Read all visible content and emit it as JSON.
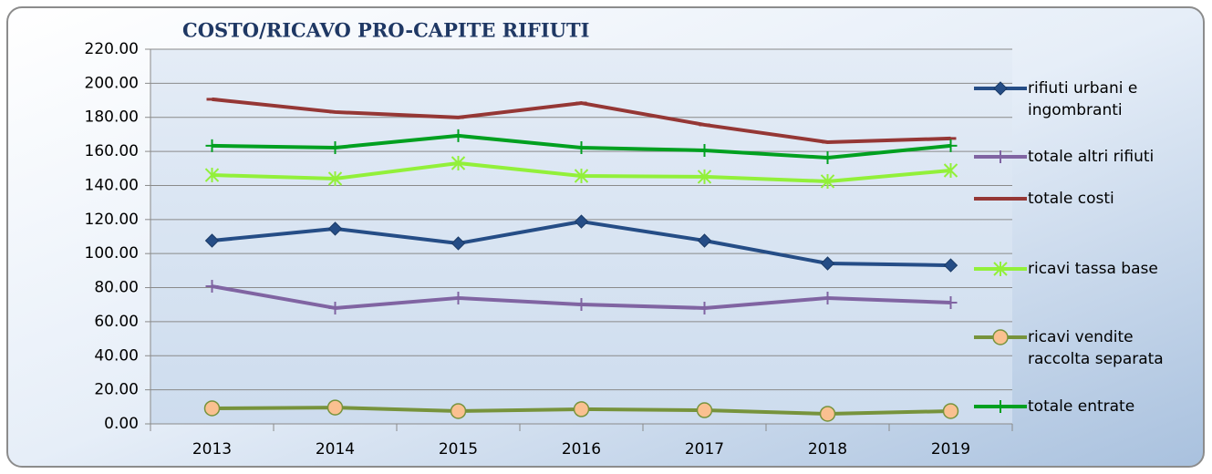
{
  "chart_data": {
    "type": "line",
    "title": "COSTO/RICAVO PRO-CAPITE RIFIUTI",
    "categories": [
      "2013",
      "2014",
      "2015",
      "2016",
      "2017",
      "2018",
      "2019"
    ],
    "series": [
      {
        "name": "rifiuti urbani e ingombranti",
        "color": "#254d86",
        "marker": "diamond",
        "values": [
          107.6,
          114.6,
          106.0,
          118.8,
          107.6,
          94.2,
          93.1
        ]
      },
      {
        "name": "totale altri rifiuti",
        "color": "#8064a2",
        "marker": "plus",
        "values": [
          80.8,
          68.0,
          73.9,
          70.1,
          68.0,
          73.9,
          71.2
        ]
      },
      {
        "name": "totale costi",
        "color": "#953735",
        "marker": "dash",
        "values": [
          190.6,
          183.1,
          179.9,
          188.4,
          175.6,
          165.4,
          167.6
        ]
      },
      {
        "name": "ricavi tassa base",
        "color": "#92f03a",
        "marker": "star",
        "values": [
          146.1,
          144.0,
          153.1,
          145.6,
          145.1,
          142.4,
          148.8
        ]
      },
      {
        "name": "ricavi vendite raccolta separata",
        "color": "#77933c",
        "marker": "circle",
        "marker_fill": "#fac090",
        "values": [
          9.1,
          9.6,
          7.5,
          8.6,
          8.0,
          5.9,
          7.5
        ]
      },
      {
        "name": "totale entrate",
        "color": "#00a020",
        "marker": "plus",
        "values": [
          163.3,
          162.2,
          169.2,
          162.2,
          160.6,
          156.3,
          163.3
        ]
      }
    ],
    "ylim": [
      0,
      220
    ],
    "yticks": [
      {
        "value": 0,
        "label": "0.00"
      },
      {
        "value": 20,
        "label": "20.00"
      },
      {
        "value": 40,
        "label": "40.00"
      },
      {
        "value": 60,
        "label": "60.00"
      },
      {
        "value": 80,
        "label": "80.00"
      },
      {
        "value": 100,
        "label": "100.00"
      },
      {
        "value": 120,
        "label": "120.00"
      },
      {
        "value": 140,
        "label": "140.00"
      },
      {
        "value": 160,
        "label": "160.00"
      },
      {
        "value": 180,
        "label": "180.00"
      },
      {
        "value": 200,
        "label": "200.00"
      },
      {
        "value": 220,
        "label": "220.00"
      }
    ],
    "grid": true,
    "legend": "right"
  }
}
